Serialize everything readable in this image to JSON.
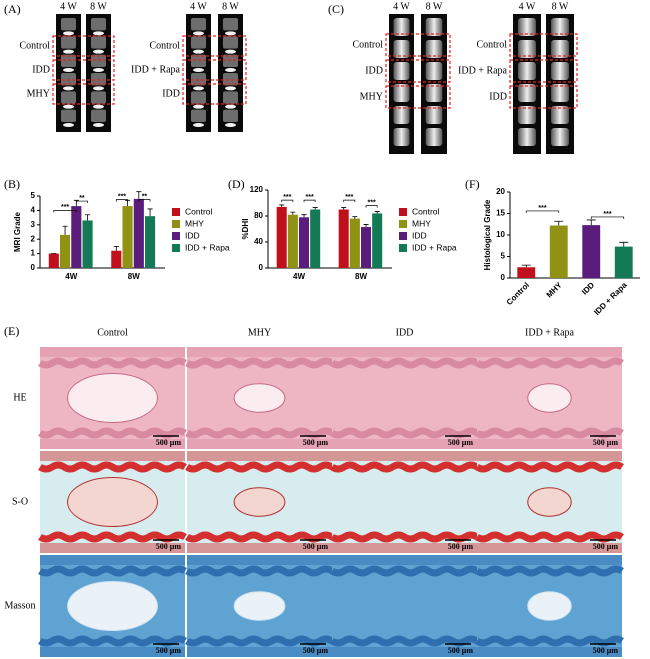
{
  "panel_labels": [
    "(A)",
    "(B)",
    "(C)",
    "(D)",
    "(E)",
    "(F)"
  ],
  "panel_a": {
    "time_labels": [
      "4 W",
      "8 W",
      "4 W",
      "8 W"
    ],
    "left_rows": [
      "Control",
      "IDD",
      "MHY"
    ],
    "right_rows": [
      "Control",
      "IDD + Rapa",
      "IDD"
    ]
  },
  "panel_c": {
    "time_labels": [
      "4 W",
      "8 W",
      "4 W",
      "8 W"
    ],
    "left_rows": [
      "Control",
      "IDD",
      "MHY"
    ],
    "right_rows": [
      "Control",
      "IDD + Rapa",
      "IDD"
    ]
  },
  "chart_data": [
    {
      "type": "bar",
      "y_label": "MRI Grade",
      "categories": [
        "4W",
        "8W"
      ],
      "series": [
        {
          "name": "Control",
          "color": "#c0101c",
          "values": [
            1.0,
            1.2
          ],
          "errors": [
            0,
            0.3
          ]
        },
        {
          "name": "MHY",
          "color": "#8f9212",
          "values": [
            2.3,
            4.3
          ],
          "errors": [
            0.6,
            0.4
          ]
        },
        {
          "name": "IDD",
          "color": "#5a1d7c",
          "values": [
            4.3,
            4.8
          ],
          "errors": [
            0.4,
            0.5
          ]
        },
        {
          "name": "IDD + Rapa",
          "color": "#137a55",
          "values": [
            3.3,
            3.6
          ],
          "errors": [
            0.4,
            0.5
          ]
        }
      ],
      "ylim": [
        0,
        5
      ],
      "yticks": [
        0,
        1,
        2,
        3,
        4,
        5
      ],
      "legend": "right",
      "annotations": [
        "***",
        "**",
        "***",
        "**"
      ]
    },
    {
      "type": "bar",
      "y_label": "%DHI",
      "categories": [
        "4W",
        "8W"
      ],
      "series": [
        {
          "name": "Control",
          "color": "#c0101c",
          "values": [
            94,
            90
          ],
          "errors": [
            3,
            3
          ]
        },
        {
          "name": "MHY",
          "color": "#8f9212",
          "values": [
            82,
            76
          ],
          "errors": [
            4,
            3
          ]
        },
        {
          "name": "IDD",
          "color": "#5a1d7c",
          "values": [
            78,
            63
          ],
          "errors": [
            4,
            4
          ]
        },
        {
          "name": "IDD + Rapa",
          "color": "#137a55",
          "values": [
            90,
            84
          ],
          "errors": [
            3,
            3
          ]
        }
      ],
      "ylim": [
        0,
        120
      ],
      "yticks": [
        0,
        40,
        80,
        120
      ],
      "legend": "right",
      "annotations": [
        "***",
        "***",
        "***",
        "***"
      ]
    },
    {
      "type": "bar",
      "y_label": "Histological Grade",
      "categories": [
        "Control",
        "MHY",
        "IDD",
        "IDD + Rapa"
      ],
      "values": [
        2.5,
        12.2,
        12.3,
        7.3
      ],
      "errors": [
        0.5,
        1.0,
        1.2,
        1.0
      ],
      "colors": [
        "#c0101c",
        "#8f9212",
        "#5a1d7c",
        "#137a55"
      ],
      "ylim": [
        0,
        20
      ],
      "yticks": [
        0,
        5,
        10,
        15,
        20
      ],
      "annotations": [
        "***",
        "***"
      ]
    }
  ],
  "panel_e": {
    "columns": [
      "Control",
      "MHY",
      "IDD",
      "IDD + Rapa"
    ],
    "rows": [
      "HE",
      "S-O",
      "Masson"
    ],
    "scale_bar": "500 μm"
  }
}
